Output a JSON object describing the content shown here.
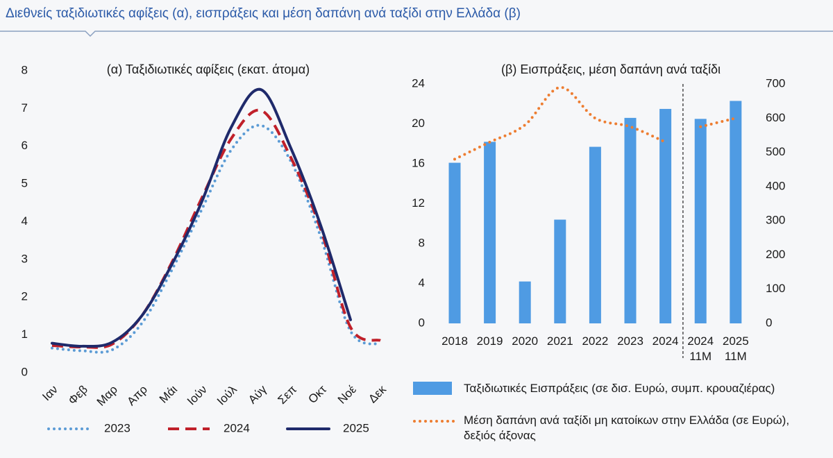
{
  "title": "Διεθνείς ταξιδιωτικές αφίξεις (α), εισπράξεις και μέση δαπάνη ανά ταξίδι στην Ελλάδα (β)",
  "chart_data": [
    {
      "type": "line",
      "title": "(α) Ταξιδιωτικές αφίξεις (εκατ. άτομα)",
      "categories": [
        "Ιαν",
        "Φεβ",
        "Μαρ",
        "Απρ",
        "Μάι",
        "Ιούν",
        "Ιούλ",
        "Αύγ",
        "Σεπ",
        "Οκτ",
        "Νοέ",
        "Δεκ"
      ],
      "ylim": [
        0,
        8
      ],
      "yticks": [
        0,
        1,
        2,
        3,
        4,
        5,
        6,
        7,
        8
      ],
      "smooth": true,
      "legend": "bottom",
      "series": [
        {
          "name": "2023",
          "color": "#5b9bd5",
          "style": "dotted",
          "values": [
            0.65,
            0.58,
            0.6,
            1.3,
            2.7,
            4.3,
            5.9,
            6.55,
            5.6,
            3.6,
            1.1,
            0.75
          ]
        },
        {
          "name": "2024",
          "color": "#c0202a",
          "style": "dashed",
          "values": [
            0.72,
            0.68,
            0.75,
            1.5,
            2.9,
            4.6,
            6.2,
            6.95,
            5.7,
            3.8,
            1.2,
            0.85
          ]
        },
        {
          "name": "2025",
          "color": "#1f2a6b",
          "style": "solid",
          "values": [
            0.78,
            0.7,
            0.8,
            1.5,
            2.85,
            4.5,
            6.5,
            7.5,
            5.95,
            3.9,
            1.4,
            null
          ]
        }
      ]
    },
    {
      "type": "combo",
      "title": "(β) Εισπράξεις, μέση δαπάνη ανά ταξίδι",
      "categories": [
        "2018",
        "2019",
        "2020",
        "2021",
        "2022",
        "2023",
        "2024",
        "2024\n11M",
        "2025\n11M"
      ],
      "divider_after": "2024",
      "smooth": true,
      "legend": "bottom",
      "ylim": [
        0,
        24
      ],
      "yticks": [
        0,
        4,
        8,
        12,
        16,
        20,
        24
      ],
      "y2lim": [
        0,
        700
      ],
      "y2ticks": [
        0,
        100,
        200,
        300,
        400,
        500,
        600,
        700
      ],
      "series": [
        {
          "name": "Ταξιδιωτικές Εισπράξεις (σε δισ. Ευρώ, συμπ. κρουαζιέρας)",
          "type": "bar",
          "color": "#4f9be3",
          "values": [
            16.1,
            18.2,
            4.2,
            10.4,
            17.7,
            20.6,
            21.5,
            20.5,
            22.3
          ]
        },
        {
          "name": "Μέση δαπάνη ανά ταξίδι μη κατοίκων στην Ελλάδα (σε Ευρώ), δεξιός άξονας",
          "type": "line",
          "axis": "y2",
          "style": "dotted",
          "color": "#ed7d31",
          "values": [
            480,
            530,
            580,
            690,
            600,
            575,
            530,
            575,
            600
          ]
        }
      ]
    }
  ]
}
